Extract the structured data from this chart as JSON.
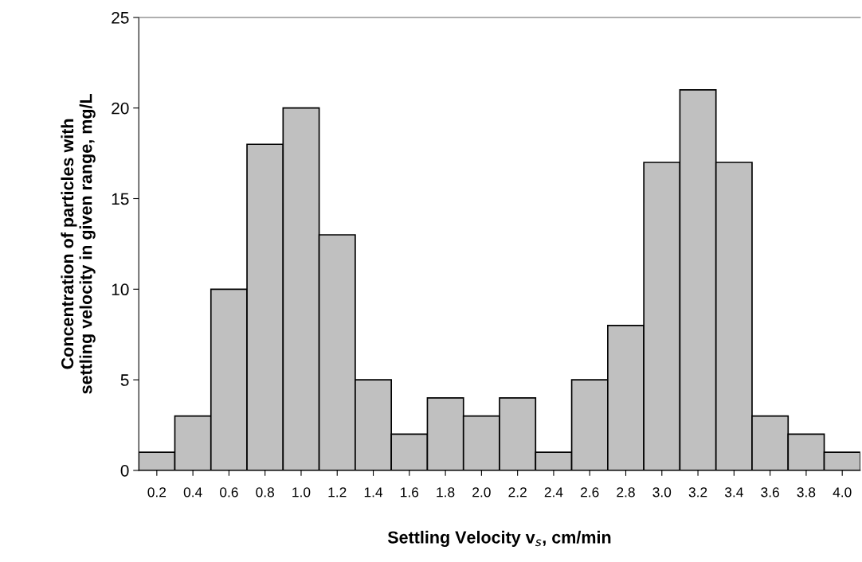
{
  "chart_data": {
    "type": "bar",
    "categories": [
      "0.2",
      "0.4",
      "0.6",
      "0.8",
      "1.0",
      "1.2",
      "1.4",
      "1.6",
      "1.8",
      "2.0",
      "2.2",
      "2.4",
      "2.6",
      "2.8",
      "3.0",
      "3.2",
      "3.4",
      "3.6",
      "3.8",
      "4.0"
    ],
    "values": [
      1,
      3,
      10,
      18,
      20,
      13,
      5,
      2,
      4,
      3,
      4,
      1,
      5,
      8,
      17,
      21,
      17,
      3,
      2,
      1
    ],
    "color": "#c0c0c0",
    "xlabel": "Settling Velocity v$_{s}$, cm/min",
    "ylabel": "Concentration of particles with\nsettling velocity in given range, mg/L",
    "ylim": [
      0,
      25
    ],
    "yticks": [
      0,
      5,
      10,
      15,
      20,
      25
    ],
    "grid": false,
    "legend": false
  }
}
